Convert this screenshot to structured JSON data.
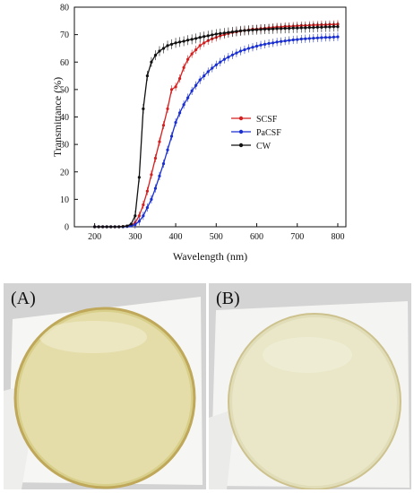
{
  "chart_data": {
    "type": "line",
    "title": "",
    "xlabel": "Wavelength (nm)",
    "ylabel": "Transmittance (%)",
    "xlim": [
      150,
      820
    ],
    "ylim": [
      0,
      80
    ],
    "xticks": [
      200,
      300,
      400,
      500,
      600,
      700,
      800
    ],
    "yticks": [
      0,
      10,
      20,
      30,
      40,
      50,
      60,
      70,
      80
    ],
    "legend_position": "center-right",
    "grid": false,
    "series": [
      {
        "name": "SCSF",
        "color": "#d42020",
        "x": [
          200,
          210,
          220,
          230,
          240,
          250,
          260,
          270,
          280,
          290,
          300,
          310,
          320,
          330,
          340,
          350,
          360,
          370,
          380,
          390,
          400,
          410,
          420,
          430,
          440,
          450,
          460,
          470,
          480,
          490,
          500,
          510,
          520,
          530,
          540,
          550,
          560,
          570,
          580,
          590,
          600,
          610,
          620,
          630,
          640,
          650,
          660,
          670,
          680,
          690,
          700,
          710,
          720,
          730,
          740,
          750,
          760,
          770,
          780,
          790,
          800
        ],
        "y": [
          0,
          0,
          0,
          0,
          0,
          0,
          0,
          0.1,
          0.2,
          0.5,
          1.5,
          4,
          8,
          13,
          19,
          25,
          31,
          37,
          43,
          50,
          51,
          54,
          58,
          61,
          63,
          64.5,
          66,
          67,
          67.8,
          68.5,
          69,
          69.6,
          70,
          70.4,
          70.8,
          71,
          71.3,
          71.5,
          71.7,
          72,
          72,
          72.2,
          72.3,
          72.5,
          72.6,
          72.8,
          72.8,
          73,
          73,
          73.1,
          73.2,
          73.3,
          73.3,
          73.4,
          73.5,
          73.5,
          73.6,
          73.6,
          73.7,
          73.7,
          73.8
        ]
      },
      {
        "name": "PaCSF",
        "color": "#1a2fd0",
        "x": [
          200,
          210,
          220,
          230,
          240,
          250,
          260,
          270,
          280,
          290,
          300,
          310,
          320,
          330,
          340,
          350,
          360,
          370,
          380,
          390,
          400,
          410,
          420,
          430,
          440,
          450,
          460,
          470,
          480,
          490,
          500,
          510,
          520,
          530,
          540,
          550,
          560,
          570,
          580,
          590,
          600,
          610,
          620,
          630,
          640,
          650,
          660,
          670,
          680,
          690,
          700,
          710,
          720,
          730,
          740,
          750,
          760,
          770,
          780,
          790,
          800
        ],
        "y": [
          0,
          0,
          0,
          0,
          0,
          0,
          0,
          0,
          0.1,
          0.3,
          0.8,
          2,
          4,
          7,
          10,
          14,
          18.5,
          23,
          28,
          33,
          38,
          41.5,
          44.5,
          47,
          49.5,
          51.5,
          53.5,
          55,
          56.5,
          57.8,
          59,
          60,
          61,
          61.8,
          62.6,
          63.3,
          64,
          64.5,
          65,
          65.4,
          65.8,
          66.2,
          66.5,
          66.8,
          67,
          67.3,
          67.5,
          67.7,
          67.9,
          68.1,
          68.2,
          68.4,
          68.5,
          68.6,
          68.7,
          68.8,
          68.9,
          69,
          69,
          69.1,
          69.2
        ]
      },
      {
        "name": "CW",
        "color": "#111111",
        "x": [
          200,
          210,
          220,
          230,
          240,
          250,
          260,
          270,
          280,
          290,
          300,
          310,
          320,
          330,
          340,
          350,
          360,
          370,
          380,
          390,
          400,
          410,
          420,
          430,
          440,
          450,
          460,
          470,
          480,
          490,
          500,
          510,
          520,
          530,
          540,
          550,
          560,
          570,
          580,
          590,
          600,
          610,
          620,
          630,
          640,
          650,
          660,
          670,
          680,
          690,
          700,
          710,
          720,
          730,
          740,
          750,
          760,
          770,
          780,
          790,
          800
        ],
        "y": [
          0,
          0,
          0,
          0,
          0,
          0,
          0,
          0.1,
          0.3,
          1,
          4,
          18,
          43,
          55,
          60,
          62.5,
          64,
          65,
          66,
          66.5,
          67,
          67.3,
          67.6,
          68,
          68.3,
          68.6,
          69,
          69.3,
          69.6,
          69.9,
          70.2,
          70.4,
          70.6,
          70.8,
          71,
          71.2,
          71.4,
          71.5,
          71.6,
          71.7,
          71.8,
          71.9,
          72,
          72,
          72.1,
          72.2,
          72.2,
          72.3,
          72.3,
          72.4,
          72.4,
          72.5,
          72.5,
          72.6,
          72.6,
          72.7,
          72.7,
          72.8,
          72.8,
          72.9,
          72.9
        ]
      }
    ]
  },
  "photos": {
    "a": {
      "label": "(A)"
    },
    "b": {
      "label": "(B)"
    }
  },
  "colors": {
    "axis": "#111111",
    "background_cloth": "#dcdcdc",
    "film_a": "#d6d08a",
    "film_b": "#e2dfb0"
  }
}
